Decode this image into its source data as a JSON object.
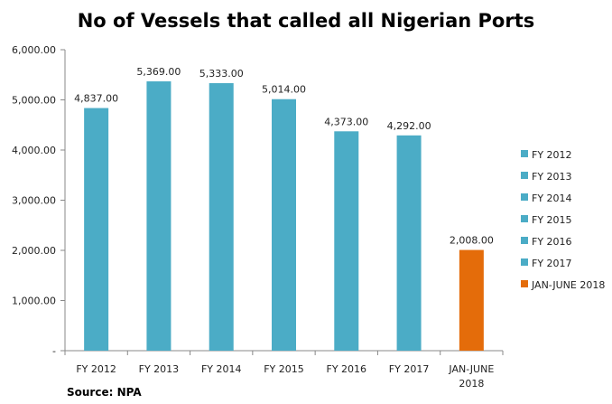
{
  "chart_data": {
    "type": "bar",
    "title": "No of Vessels that called all Nigerian Ports",
    "categories": [
      "FY 2012",
      "FY 2013",
      "FY 2014",
      "FY 2015",
      "FY 2016",
      "FY 2017",
      "JAN-JUNE 2018"
    ],
    "category_lines": [
      [
        "FY 2012"
      ],
      [
        "FY 2013"
      ],
      [
        "FY 2014"
      ],
      [
        "FY 2015"
      ],
      [
        "FY 2016"
      ],
      [
        "FY 2017"
      ],
      [
        "JAN-JUNE",
        "2018"
      ]
    ],
    "values": [
      4837,
      5369,
      5333,
      5014,
      4373,
      4292,
      2008
    ],
    "data_labels": [
      "4,837.00",
      "5,369.00",
      "5,333.00",
      "5,014.00",
      "4,373.00",
      "4,292.00",
      "2,008.00"
    ],
    "colors": [
      "#4BACC6",
      "#4BACC6",
      "#4BACC6",
      "#4BACC6",
      "#4BACC6",
      "#4BACC6",
      "#E46C0A"
    ],
    "ylim": [
      0,
      6000
    ],
    "yticks": [
      0,
      1000,
      2000,
      3000,
      4000,
      5000,
      6000
    ],
    "ytick_labels": [
      "-",
      "1,000.00",
      "2,000.00",
      "3,000.00",
      "4,000.00",
      "5,000.00",
      "6,000.00"
    ],
    "legend": [
      "FY 2012",
      "FY 2013",
      "FY 2014",
      "FY 2015",
      "FY 2016",
      "FY 2017",
      "JAN-JUNE  2018"
    ],
    "legend_position": "right",
    "grid": false,
    "xlabel": "",
    "ylabel": ""
  },
  "source": "Source: NPA"
}
